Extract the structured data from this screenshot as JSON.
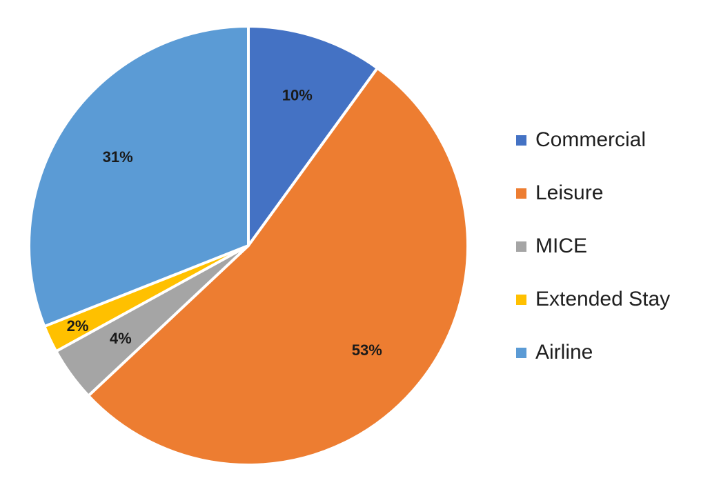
{
  "chart_data": {
    "type": "pie",
    "start_angle_deg": 0,
    "direction": "clockwise",
    "legend_position": "right",
    "slices": [
      {
        "name": "Commercial",
        "value": 10,
        "label": "10%",
        "color": "#4472C4"
      },
      {
        "name": "Leisure",
        "value": 53,
        "label": "53%",
        "color": "#ED7D31"
      },
      {
        "name": "MICE",
        "value": 4,
        "label": "4%",
        "color": "#A5A5A5"
      },
      {
        "name": "Extended Stay",
        "value": 2,
        "label": "2%",
        "color": "#FFC000"
      },
      {
        "name": "Airline",
        "value": 31,
        "label": "31%",
        "color": "#5B9BD5"
      }
    ]
  }
}
